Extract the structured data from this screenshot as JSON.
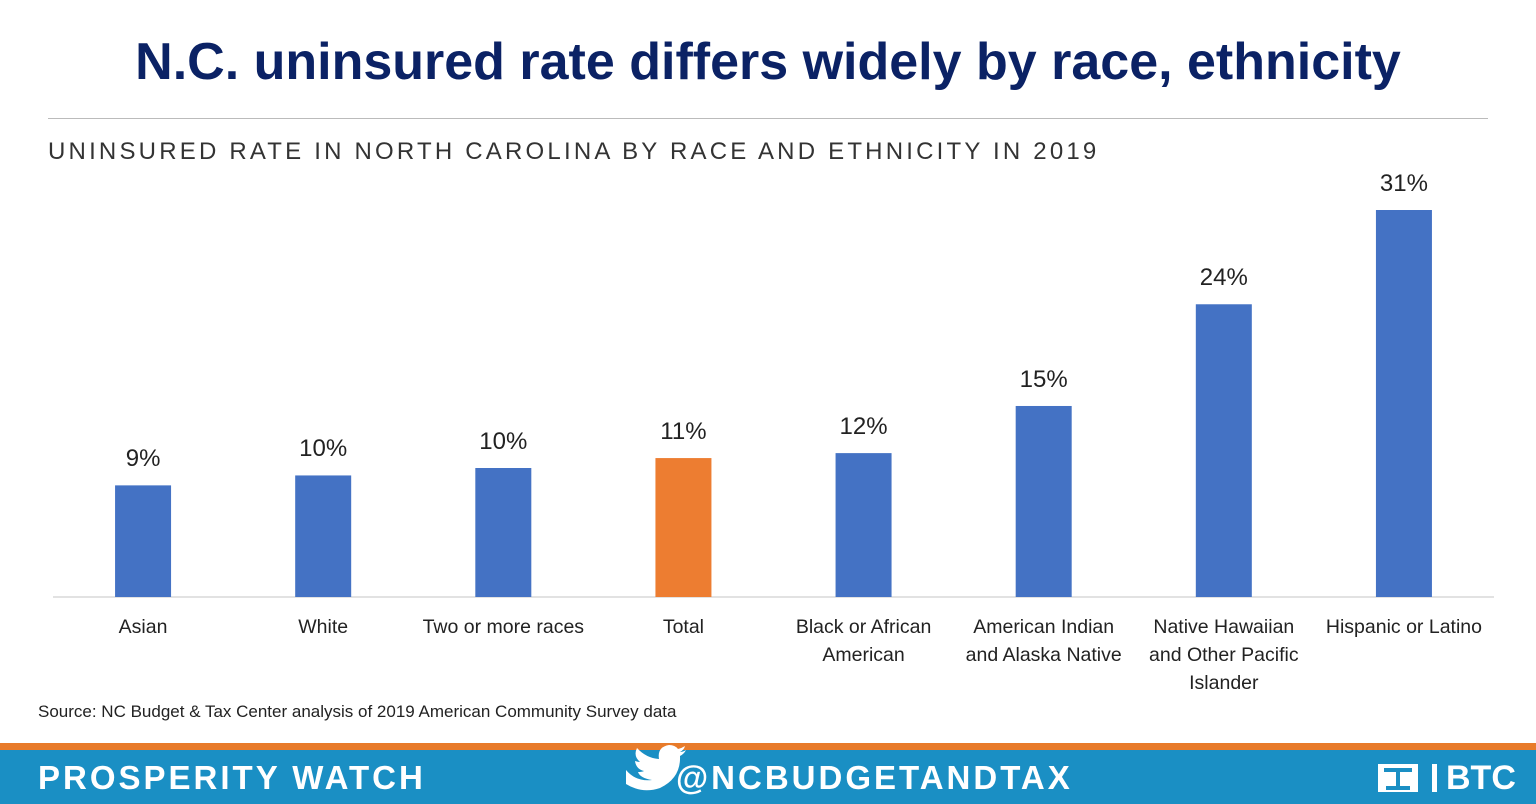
{
  "header": {
    "title": "N.C. uninsured rate differs widely by race, ethnicity"
  },
  "chart_data": {
    "type": "bar",
    "title": "UNINSURED RATE IN NORTH CAROLINA BY RACE AND ETHNICITY IN 2019",
    "categories": [
      "Asian",
      "White",
      "Two or more races",
      "Total",
      "Black or African American",
      "American Indian and Alaska Native",
      "Native Hawaiian and Other Pacific Islander",
      "Hispanic or Latino"
    ],
    "values": [
      9.0,
      9.8,
      10.4,
      11.2,
      11.6,
      15.4,
      23.6,
      31.2
    ],
    "value_labels": [
      "9%",
      "10%",
      "10%",
      "11%",
      "12%",
      "15%",
      "24%",
      "31%"
    ],
    "colors": [
      "#4472c4",
      "#4472c4",
      "#4472c4",
      "#ed7d31",
      "#4472c4",
      "#4472c4",
      "#4472c4",
      "#4472c4"
    ],
    "source": "Source: NC Budget & Tax Center analysis of 2019 American Community Survey data"
  },
  "footer": {
    "left": "PROSPERITY WATCH",
    "handle": "@NCBUDGETANDTAX",
    "logo": "BTC"
  }
}
